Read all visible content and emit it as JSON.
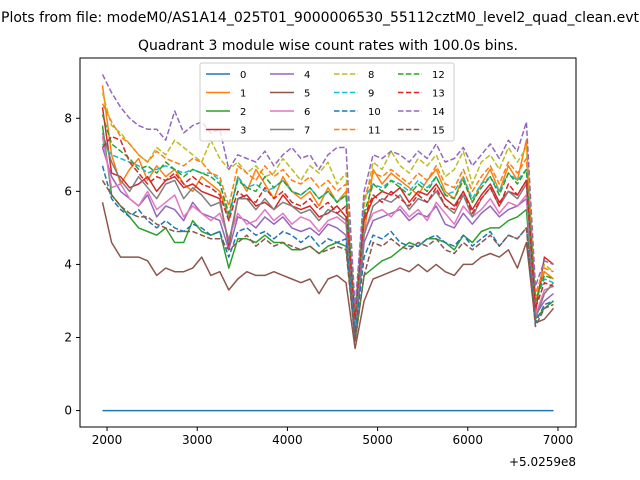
{
  "chart_data": {
    "type": "line",
    "suptitle": "Plots from file: modeM0/AS1A14_025T01_9000006530_55112cztM0_level2_quad_clean.evt",
    "title": "Quadrant 3 module wise count rates with 100.0s bins.",
    "xlabel": "",
    "ylabel": "",
    "x_offset_label": "+5.0259e8",
    "xlim": [
      1700,
      7200
    ],
    "ylim": [
      -0.45,
      9.65
    ],
    "x_ticks": [
      2000,
      3000,
      4000,
      5000,
      6000,
      7000
    ],
    "y_ticks": [
      0,
      2,
      4,
      6,
      8
    ],
    "x": [
      1950,
      2050,
      2150,
      2250,
      2350,
      2450,
      2550,
      2650,
      2750,
      2850,
      2950,
      3050,
      3150,
      3250,
      3350,
      3450,
      3550,
      3650,
      3750,
      3850,
      3950,
      4050,
      4150,
      4250,
      4350,
      4450,
      4550,
      4650,
      4750,
      4850,
      4950,
      5050,
      5150,
      5250,
      5350,
      5450,
      5550,
      5650,
      5750,
      5850,
      5950,
      6050,
      6150,
      6250,
      6350,
      6450,
      6550,
      6650,
      6750,
      6850,
      6950
    ],
    "series": [
      {
        "name": "0",
        "color": "#1f77b4",
        "dash": "solid",
        "values": [
          0,
          0,
          0,
          0,
          0,
          0,
          0,
          0,
          0,
          0,
          0,
          0,
          0,
          0,
          0,
          0,
          0,
          0,
          0,
          0,
          0,
          0,
          0,
          0,
          0,
          0,
          0,
          0,
          0,
          0,
          0,
          0,
          0,
          0,
          0,
          0,
          0,
          0,
          0,
          0,
          0,
          0,
          0,
          0,
          0,
          0,
          0,
          0,
          0,
          0,
          0
        ]
      },
      {
        "name": "1",
        "color": "#ff7f0e",
        "dash": "solid",
        "values": [
          8.9,
          7.0,
          6.2,
          6.6,
          6.9,
          6.3,
          6.7,
          6.4,
          6.6,
          6.2,
          6.0,
          6.4,
          6.2,
          6.0,
          5.3,
          6.4,
          6.0,
          6.6,
          6.2,
          5.8,
          6.4,
          6.0,
          5.8,
          6.0,
          5.6,
          6.1,
          5.7,
          6.0,
          2.4,
          4.8,
          6.6,
          6.2,
          6.5,
          6.3,
          6.1,
          5.9,
          6.3,
          6.6,
          6.0,
          5.8,
          6.4,
          5.7,
          6.2,
          6.6,
          6.0,
          6.7,
          6.3,
          7.4,
          3.0,
          3.8,
          3.6
        ]
      },
      {
        "name": "2",
        "color": "#2ca02c",
        "dash": "solid",
        "values": [
          7.8,
          5.9,
          5.6,
          5.3,
          5.0,
          4.9,
          4.8,
          5.0,
          4.6,
          4.6,
          5.2,
          4.9,
          4.8,
          4.9,
          3.9,
          4.7,
          4.7,
          4.6,
          4.8,
          4.6,
          4.6,
          4.4,
          4.4,
          4.5,
          4.3,
          4.5,
          4.6,
          4.5,
          1.9,
          3.7,
          3.9,
          4.1,
          4.2,
          4.4,
          4.6,
          4.5,
          4.7,
          4.7,
          4.6,
          4.4,
          4.8,
          4.6,
          4.9,
          5.0,
          5.0,
          5.2,
          5.3,
          5.5,
          2.5,
          2.8,
          3.0
        ]
      },
      {
        "name": "3",
        "color": "#d62728",
        "dash": "solid",
        "values": [
          8.3,
          6.5,
          6.4,
          6.1,
          6.2,
          6.4,
          6.0,
          6.3,
          6.4,
          6.1,
          6.2,
          6.0,
          5.9,
          5.8,
          4.5,
          5.8,
          5.9,
          5.6,
          5.7,
          5.5,
          5.9,
          5.6,
          5.5,
          5.6,
          5.3,
          5.4,
          5.6,
          5.3,
          2.2,
          5.2,
          5.8,
          6.0,
          5.9,
          6.1,
          5.7,
          6.0,
          5.9,
          6.2,
          5.8,
          5.6,
          6.0,
          5.5,
          5.9,
          6.2,
          5.7,
          6.0,
          5.9,
          6.3,
          2.7,
          4.2,
          4.0
        ]
      },
      {
        "name": "4",
        "color": "#9467bd",
        "dash": "solid",
        "values": [
          7.2,
          6.4,
          6.0,
          5.8,
          5.6,
          5.9,
          5.3,
          5.6,
          5.5,
          5.2,
          5.7,
          5.4,
          5.3,
          5.2,
          4.4,
          5.3,
          5.2,
          5.0,
          5.3,
          5.1,
          5.3,
          5.0,
          4.9,
          5.0,
          4.8,
          5.1,
          5.0,
          4.8,
          2.0,
          4.6,
          5.2,
          5.3,
          5.4,
          5.5,
          5.2,
          5.4,
          5.3,
          5.6,
          5.1,
          5.0,
          5.4,
          5.1,
          5.4,
          5.6,
          5.3,
          5.5,
          5.6,
          5.8,
          2.6,
          3.0,
          3.2
        ]
      },
      {
        "name": "5",
        "color": "#8c564b",
        "dash": "solid",
        "values": [
          5.7,
          4.6,
          4.2,
          4.2,
          4.2,
          4.1,
          3.7,
          3.9,
          3.8,
          3.8,
          3.9,
          4.2,
          3.7,
          3.8,
          3.3,
          3.6,
          3.8,
          3.7,
          3.7,
          3.8,
          3.7,
          3.6,
          3.5,
          3.6,
          3.2,
          3.6,
          3.7,
          3.5,
          1.7,
          3.0,
          3.6,
          3.7,
          3.8,
          3.9,
          3.8,
          4.0,
          3.8,
          4.0,
          3.8,
          3.7,
          4.0,
          4.0,
          4.2,
          4.3,
          4.2,
          4.4,
          3.9,
          4.6,
          2.4,
          2.5,
          2.8
        ]
      },
      {
        "name": "6",
        "color": "#e377c2",
        "dash": "solid",
        "values": [
          7.5,
          6.1,
          6.2,
          5.8,
          5.6,
          6.0,
          5.5,
          5.7,
          5.9,
          5.3,
          5.6,
          5.4,
          5.2,
          5.4,
          4.7,
          5.4,
          5.1,
          5.2,
          5.5,
          5.2,
          5.4,
          5.1,
          5.3,
          5.2,
          4.9,
          5.2,
          5.3,
          5.1,
          2.3,
          4.9,
          5.4,
          5.5,
          5.3,
          5.6,
          5.3,
          5.5,
          5.2,
          5.7,
          5.4,
          5.1,
          5.6,
          5.3,
          5.5,
          5.8,
          5.4,
          5.7,
          5.6,
          5.9,
          2.6,
          3.3,
          3.4
        ]
      },
      {
        "name": "7",
        "color": "#7f7f7f",
        "dash": "solid",
        "values": [
          7.6,
          6.8,
          6.3,
          6.0,
          6.4,
          6.1,
          5.8,
          6.2,
          6.3,
          5.8,
          6.1,
          5.9,
          5.6,
          5.7,
          4.6,
          5.8,
          5.8,
          5.5,
          5.8,
          5.5,
          5.7,
          5.6,
          5.4,
          5.5,
          5.2,
          5.5,
          5.4,
          5.2,
          2.1,
          4.8,
          5.6,
          5.8,
          5.7,
          5.9,
          5.5,
          5.8,
          5.7,
          6.0,
          5.6,
          5.4,
          5.9,
          5.3,
          5.8,
          6.1,
          5.6,
          6.0,
          5.8,
          6.2,
          2.5,
          3.2,
          3.5
        ]
      },
      {
        "name": "8",
        "color": "#bcbd22",
        "dash": "dashed",
        "values": [
          8.7,
          7.8,
          7.6,
          7.3,
          7.0,
          6.8,
          7.2,
          7.0,
          7.4,
          7.2,
          7.0,
          6.8,
          7.4,
          6.9,
          6.6,
          6.8,
          6.5,
          6.7,
          6.4,
          6.5,
          6.9,
          6.6,
          6.3,
          6.7,
          6.5,
          6.8,
          6.2,
          6.5,
          2.6,
          5.6,
          6.8,
          6.6,
          7.1,
          6.7,
          6.5,
          6.9,
          6.7,
          7.0,
          6.4,
          6.6,
          7.1,
          6.2,
          6.8,
          7.0,
          6.6,
          7.2,
          6.8,
          7.2,
          3.1,
          4.0,
          3.8
        ]
      },
      {
        "name": "9",
        "color": "#17becf",
        "dash": "dashed",
        "values": [
          7.3,
          7.0,
          6.9,
          6.8,
          6.7,
          6.5,
          6.6,
          6.7,
          6.6,
          6.5,
          6.6,
          6.5,
          6.5,
          6.3,
          5.2,
          6.4,
          6.1,
          6.2,
          6.0,
          6.1,
          6.3,
          6.0,
          5.9,
          6.1,
          5.8,
          6.0,
          5.7,
          5.9,
          2.7,
          5.8,
          6.2,
          6.1,
          6.3,
          6.2,
          6.0,
          6.3,
          6.1,
          6.4,
          5.9,
          6.0,
          6.4,
          5.8,
          6.2,
          6.4,
          6.0,
          6.5,
          6.3,
          6.6,
          3.0,
          3.6,
          3.5
        ]
      },
      {
        "name": "10",
        "color": "#1f77b4",
        "dash": "dashed",
        "values": [
          6.7,
          5.8,
          5.5,
          5.3,
          5.5,
          5.2,
          5.0,
          5.2,
          5.0,
          4.9,
          5.1,
          5.0,
          4.8,
          4.9,
          4.2,
          4.9,
          5.0,
          4.8,
          4.9,
          4.7,
          4.9,
          4.8,
          4.6,
          4.8,
          4.5,
          4.7,
          4.6,
          4.7,
          2.1,
          4.2,
          4.8,
          4.7,
          4.9,
          4.6,
          4.5,
          4.5,
          4.7,
          4.8,
          4.6,
          4.5,
          4.8,
          4.5,
          4.7,
          4.9,
          4.5,
          4.8,
          4.7,
          5.0,
          2.4,
          2.9,
          3.0
        ]
      },
      {
        "name": "11",
        "color": "#ff7f0e",
        "dash": "dashed",
        "values": [
          8.4,
          7.9,
          7.5,
          7.3,
          7.0,
          6.8,
          7.1,
          6.9,
          6.8,
          6.7,
          6.9,
          6.8,
          6.5,
          6.4,
          5.6,
          6.7,
          6.5,
          6.3,
          6.7,
          6.4,
          6.6,
          6.3,
          6.2,
          6.4,
          6.1,
          6.3,
          6.0,
          6.2,
          2.8,
          5.8,
          6.5,
          6.4,
          6.6,
          6.4,
          6.2,
          6.5,
          6.3,
          6.7,
          6.2,
          6.1,
          6.6,
          6.0,
          6.4,
          6.7,
          6.2,
          6.8,
          6.5,
          6.9,
          3.2,
          3.9,
          3.8
        ]
      },
      {
        "name": "12",
        "color": "#2ca02c",
        "dash": "dashed",
        "values": [
          8.1,
          7.3,
          7.1,
          6.9,
          6.6,
          6.7,
          6.5,
          6.8,
          6.6,
          6.4,
          6.6,
          6.5,
          6.4,
          6.2,
          5.4,
          6.3,
          6.1,
          6.0,
          6.4,
          6.1,
          6.3,
          6.0,
          5.9,
          6.1,
          5.8,
          6.0,
          5.7,
          5.9,
          2.6,
          5.4,
          6.2,
          6.0,
          6.3,
          6.1,
          5.9,
          6.2,
          6.0,
          6.4,
          5.9,
          5.8,
          6.3,
          5.7,
          6.1,
          6.4,
          5.9,
          6.5,
          6.2,
          6.6,
          3.0,
          3.7,
          3.6
        ]
      },
      {
        "name": "13",
        "color": "#d62728",
        "dash": "dashed",
        "values": [
          7.2,
          7.5,
          7.4,
          6.8,
          6.5,
          6.2,
          6.4,
          6.3,
          6.5,
          6.2,
          6.4,
          6.2,
          6.1,
          5.9,
          5.2,
          6.0,
          5.8,
          5.7,
          6.1,
          5.8,
          6.0,
          5.7,
          5.6,
          5.8,
          5.5,
          5.7,
          5.4,
          5.6,
          2.5,
          5.3,
          5.9,
          5.7,
          6.0,
          5.8,
          5.6,
          5.9,
          5.7,
          6.1,
          5.6,
          5.5,
          6.0,
          5.4,
          5.8,
          6.1,
          5.6,
          6.2,
          5.9,
          6.3,
          2.8,
          3.5,
          3.4
        ]
      },
      {
        "name": "14",
        "color": "#9467bd",
        "dash": "dashed",
        "values": [
          9.2,
          8.7,
          8.3,
          8.0,
          7.8,
          7.7,
          7.7,
          7.4,
          8.2,
          7.6,
          7.8,
          7.9,
          7.6,
          7.7,
          6.6,
          7.0,
          6.9,
          6.8,
          7.1,
          6.7,
          7.0,
          7.2,
          6.9,
          7.0,
          6.6,
          7.0,
          7.2,
          7.2,
          2.8,
          6.0,
          7.0,
          6.9,
          7.1,
          7.0,
          6.8,
          7.1,
          6.9,
          7.3,
          6.8,
          6.9,
          7.2,
          6.7,
          7.0,
          7.3,
          6.9,
          7.4,
          7.1,
          7.9,
          3.4,
          4.1,
          4.0
        ]
      },
      {
        "name": "15",
        "color": "#8c564b",
        "dash": "dashed",
        "values": [
          6.3,
          5.9,
          5.6,
          5.4,
          5.3,
          5.3,
          5.1,
          5.0,
          4.9,
          4.9,
          4.9,
          4.8,
          4.7,
          4.7,
          4.4,
          4.6,
          4.8,
          4.5,
          4.7,
          4.5,
          4.6,
          4.5,
          4.4,
          4.5,
          4.3,
          4.4,
          4.5,
          4.4,
          1.9,
          3.7,
          4.6,
          4.5,
          4.7,
          4.5,
          4.4,
          4.6,
          4.5,
          4.7,
          4.4,
          4.3,
          4.6,
          4.4,
          4.6,
          4.8,
          4.5,
          4.8,
          4.7,
          5.0,
          2.3,
          2.8,
          2.9
        ]
      }
    ],
    "legend": {
      "location": "top-center",
      "ncol": 4
    }
  }
}
